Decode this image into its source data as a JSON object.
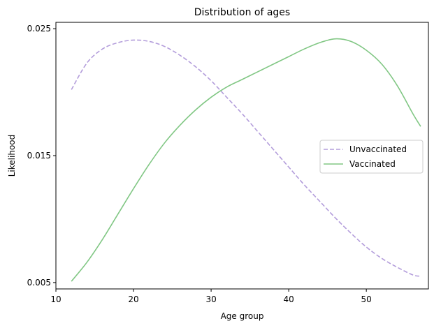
{
  "chart_data": {
    "type": "line",
    "title": "Distribution of ages",
    "xlabel": "Age group",
    "ylabel": "Likelihood",
    "xlim": [
      10,
      58
    ],
    "ylim": [
      0.0045,
      0.0255
    ],
    "xticks": [
      10,
      20,
      30,
      40,
      50
    ],
    "xtick_labels": [
      "10",
      "20",
      "30",
      "40",
      "50"
    ],
    "yticks": [
      0.005,
      0.015,
      0.025
    ],
    "ytick_labels": [
      "0.005",
      "0.015",
      "0.025"
    ],
    "grid": false,
    "legend_position": "center-right",
    "series": [
      {
        "name": "Unvaccinated",
        "color": "#b39ddb",
        "line_style": "dashed",
        "x": [
          12,
          14,
          16,
          18,
          20,
          22,
          24,
          26,
          28,
          30,
          32,
          34,
          36,
          38,
          40,
          42,
          44,
          46,
          48,
          50,
          52,
          54,
          56,
          57
        ],
        "y": [
          0.0202,
          0.0223,
          0.0234,
          0.0239,
          0.0241,
          0.024,
          0.0236,
          0.0229,
          0.022,
          0.0209,
          0.0196,
          0.0183,
          0.0169,
          0.0155,
          0.0141,
          0.0127,
          0.0114,
          0.0101,
          0.0089,
          0.0078,
          0.0069,
          0.0062,
          0.0056,
          0.0055
        ]
      },
      {
        "name": "Vaccinated",
        "color": "#81c784",
        "line_style": "solid",
        "x": [
          12,
          14,
          16,
          18,
          20,
          22,
          24,
          26,
          28,
          30,
          32,
          34,
          36,
          38,
          40,
          42,
          44,
          46,
          48,
          50,
          52,
          54,
          56,
          57
        ],
        "y": [
          0.0051,
          0.0066,
          0.0084,
          0.0104,
          0.0124,
          0.0143,
          0.016,
          0.0174,
          0.0186,
          0.0196,
          0.0204,
          0.021,
          0.0216,
          0.0222,
          0.0228,
          0.0234,
          0.0239,
          0.0242,
          0.024,
          0.0233,
          0.0222,
          0.0205,
          0.0183,
          0.0173
        ]
      }
    ]
  }
}
